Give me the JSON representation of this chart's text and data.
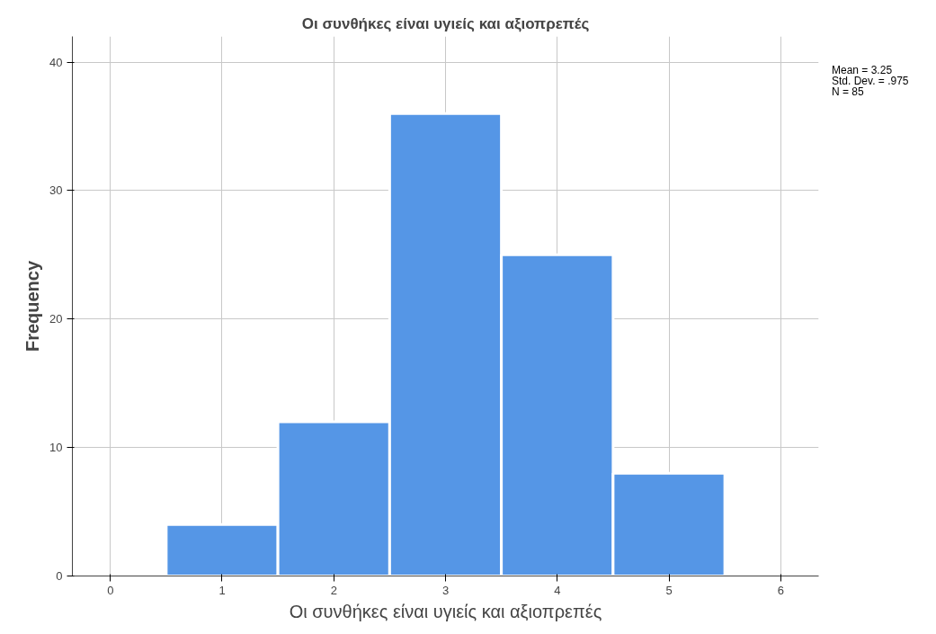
{
  "chart_data": {
    "type": "histogram",
    "title": "Οι συνθήκες είναι υγιείς και αξιοπρεπές",
    "xlabel": "Οι συνθήκες είναι υγιείς και αξιοπρεπές",
    "ylabel": "Frequency",
    "bins": [
      0.5,
      1.5,
      2.5,
      3.5,
      4.5,
      5.5
    ],
    "values": [
      4,
      12,
      36,
      25,
      8
    ],
    "color": "#5596e6",
    "xlim": [
      -0.34,
      6.34
    ],
    "xticks": [
      0,
      1,
      2,
      3,
      4,
      5,
      6
    ],
    "ylim": [
      0,
      42
    ],
    "yticks": [
      0,
      10,
      20,
      30,
      40
    ],
    "grid": true,
    "annotations": [
      "Mean = 3.25",
      "Std. Dev. = .975",
      "N = 85"
    ]
  }
}
